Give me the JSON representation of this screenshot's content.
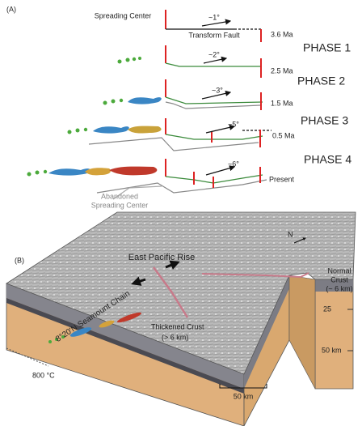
{
  "panel_a": {
    "label": "(A)",
    "spreading_center": "Spreading Center",
    "transform_fault": "Transform Fault",
    "rows": [
      {
        "angle": "~1°",
        "age": "3.6 Ma"
      },
      {
        "angle": "~2°",
        "age": "2.5 Ma",
        "phase": "PHASE 1"
      },
      {
        "angle": "~3°",
        "age": "1.5 Ma",
        "phase": "PHASE 2"
      },
      {
        "angle": "~5°",
        "age": "0.5 Ma",
        "phase": "PHASE 3"
      },
      {
        "angle": "~6°",
        "age": "Present",
        "phase": "PHASE 4"
      }
    ],
    "abandoned": [
      "Abandoned",
      "Spreading Center"
    ]
  },
  "panel_b": {
    "label": "(B)",
    "north": "N",
    "ridge": "East Pacific Rise",
    "normal_crust": [
      "Normal",
      "Crust",
      "(~ 6 km)"
    ],
    "seamount_chain": "8°20'N Seamount Chain",
    "thickened_crust": [
      "Thickened Crust",
      "(> 6 km)"
    ],
    "depth_ticks": [
      "25",
      "50 km"
    ],
    "isotherm": "800 °C",
    "scale_bar": "50 km"
  }
}
